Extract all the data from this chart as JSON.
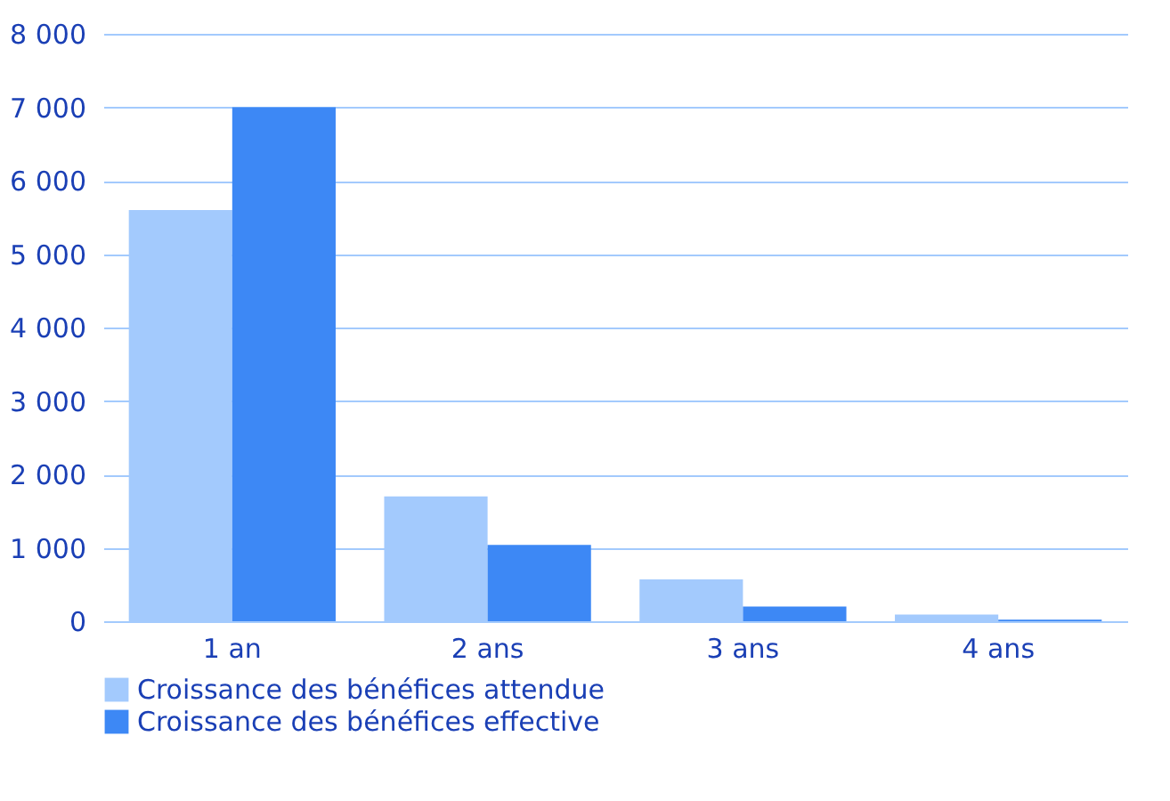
{
  "chart_data": {
    "type": "bar",
    "categories": [
      "1 an",
      "2 ans",
      "3 ans",
      "4 ans"
    ],
    "series": [
      {
        "name": "Croissance des bénéfices attendue",
        "color": "#a3cafd",
        "values": [
          5600,
          1700,
          570,
          90
        ]
      },
      {
        "name": "Croissance des bénéfices effective",
        "color": "#3d88f5",
        "values": [
          7000,
          1040,
          200,
          20
        ]
      }
    ],
    "ylim": [
      0,
      8000
    ],
    "yticks": [
      0,
      {
        "value": 1000,
        "label": "1 000"
      },
      {
        "value": 2000,
        "label": "2 000"
      },
      {
        "value": 3000,
        "label": "3 000"
      },
      {
        "value": 4000,
        "label": "4 000"
      },
      {
        "value": 5000,
        "label": "5 000"
      },
      {
        "value": 6000,
        "label": "6 000"
      },
      {
        "value": 7000,
        "label": "7 000"
      },
      {
        "value": 8000,
        "label": "8 000"
      }
    ],
    "grid": "y",
    "legend": "bottom left"
  }
}
